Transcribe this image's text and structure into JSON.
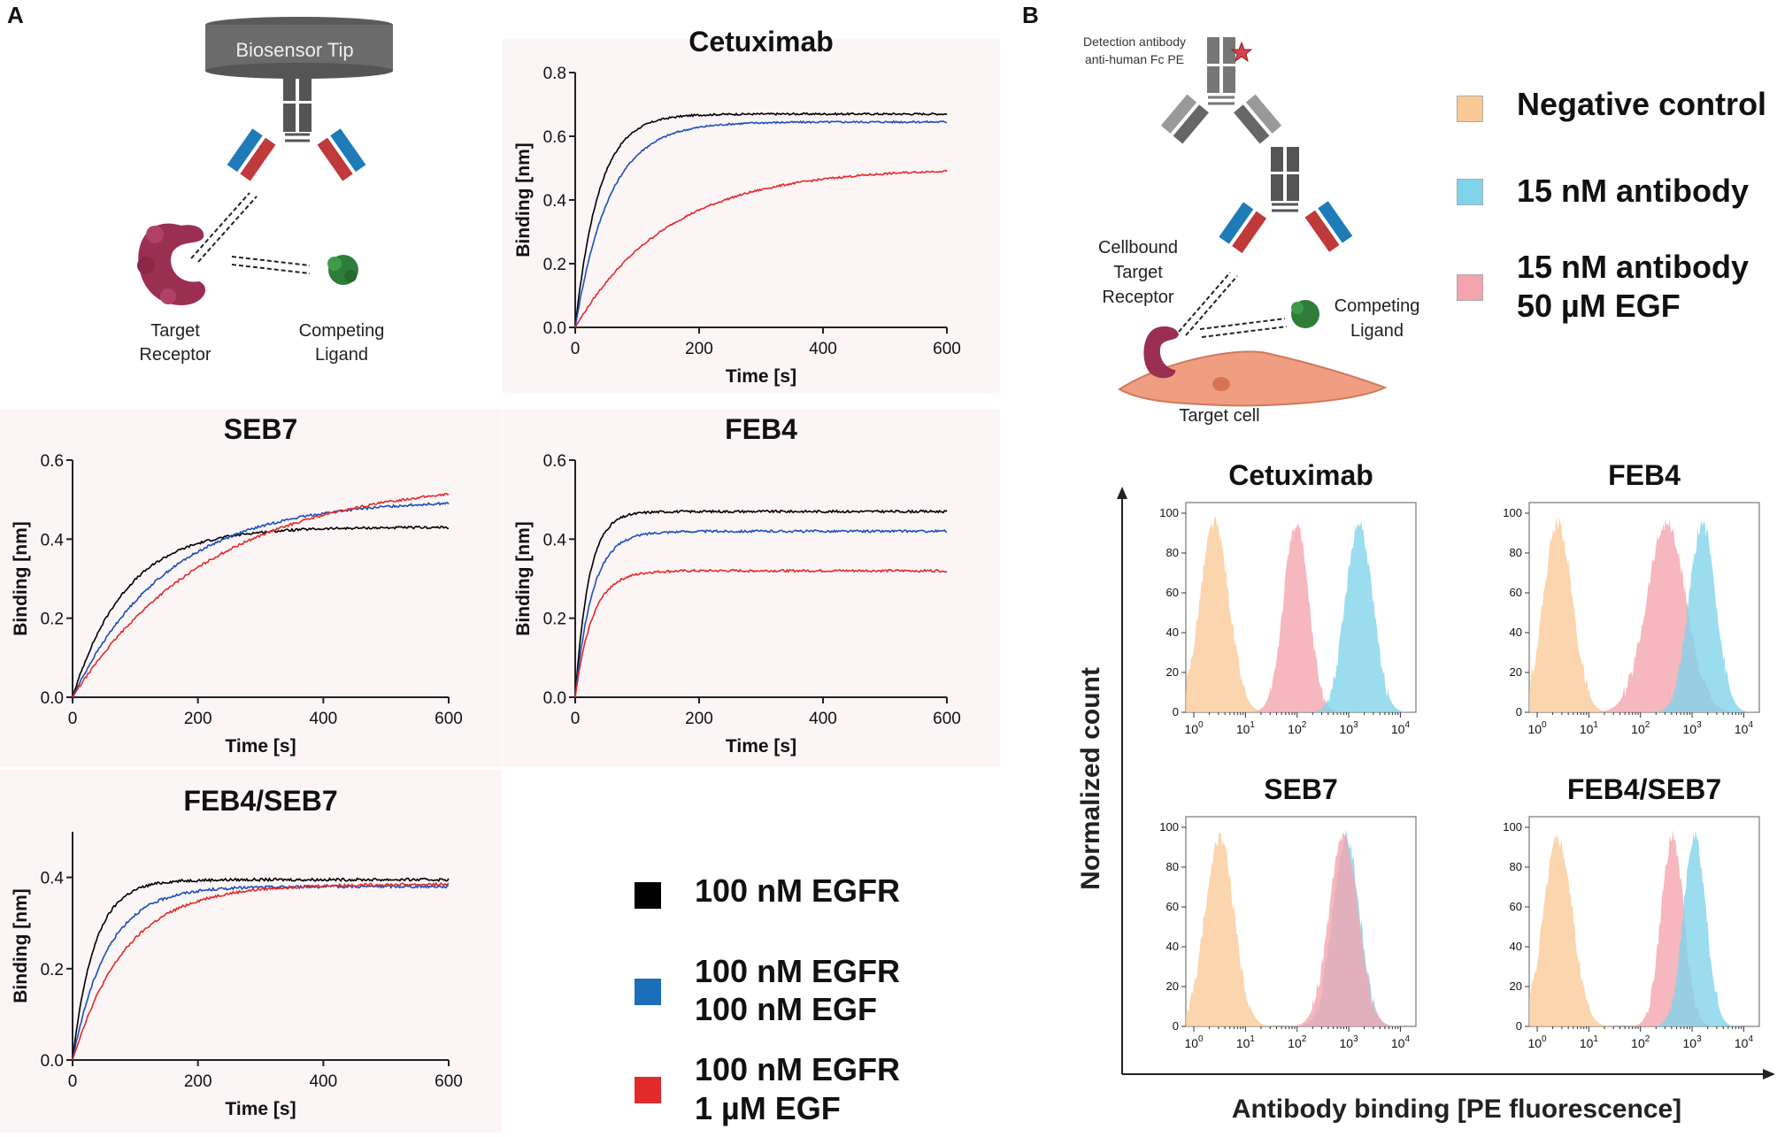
{
  "panels": {
    "a_label": "A",
    "b_label": "B"
  },
  "schematic_a": {
    "tip_label": "Biosensor Tip",
    "target_label_1": "Target",
    "target_label_2": "Receptor",
    "ligand_label_1": "Competing",
    "ligand_label_2": "Ligand"
  },
  "schematic_b": {
    "detection_label_1": "Detection antibody",
    "detection_label_2": "anti-human Fc PE",
    "cell_receptor_1": "Cellbound",
    "cell_receptor_2": "Target",
    "cell_receptor_3": "Receptor",
    "ligand_label_1": "Competing",
    "ligand_label_2": "Ligand",
    "cell_label": "Target cell"
  },
  "legend_a": {
    "items": [
      {
        "line1": "100 nM EGFR",
        "line2": "",
        "color": "#000000"
      },
      {
        "line1": "100 nM EGFR",
        "line2": "100 nM EGF",
        "color": "#1a6fb8"
      },
      {
        "line1": "100 nM EGFR",
        "line2": "1 µM EGF",
        "color": "#e32a2a"
      }
    ]
  },
  "legend_b": {
    "items": [
      {
        "line1": "Negative control",
        "line2": "",
        "color": "#f9c996"
      },
      {
        "line1": "15 nM antibody",
        "line2": "",
        "color": "#7fd3ea"
      },
      {
        "line1": "15 nM antibody",
        "line2": "50 µM EGF",
        "color": "#f5a3ad"
      }
    ]
  },
  "flow_axes": {
    "ylabel": "Normalized count",
    "xlabel": "Antibody binding [PE fluorescence]"
  },
  "chart_data": [
    {
      "id": "bli_cetuximab",
      "type": "line",
      "title": "Cetuximab",
      "xlabel": "Time [s]",
      "ylabel": "Binding [nm]",
      "xlim": [
        0,
        600
      ],
      "ylim": [
        0,
        0.8
      ],
      "xticks": [
        0,
        200,
        400,
        600
      ],
      "yticks": [
        0.0,
        0.2,
        0.4,
        0.6,
        0.8
      ],
      "series": [
        {
          "name": "100 nM EGFR",
          "color": "#000000",
          "plateau": 0.67,
          "tau": 38
        },
        {
          "name": "100 nM EGFR 100 nM EGF",
          "color": "#1a50b8",
          "plateau": 0.645,
          "tau": 55
        },
        {
          "name": "100 nM EGFR 1 µM EGF",
          "color": "#e32a2a",
          "plateau": 0.5,
          "tau": 150
        }
      ]
    },
    {
      "id": "bli_seb7",
      "type": "line",
      "title": "SEB7",
      "xlabel": "Time [s]",
      "ylabel": "Binding [nm]",
      "xlim": [
        0,
        600
      ],
      "ylim": [
        0,
        0.6
      ],
      "xticks": [
        0,
        200,
        400,
        600
      ],
      "yticks": [
        0.0,
        0.2,
        0.4,
        0.6
      ],
      "series": [
        {
          "name": "100 nM EGFR",
          "color": "#000000",
          "plateau": 0.43,
          "tau": 85
        },
        {
          "name": "100 nM EGFR 100 nM EGF",
          "color": "#1a50b8",
          "plateau": 0.5,
          "tau": 150
        },
        {
          "name": "100 nM EGFR 1 µM EGF",
          "color": "#e32a2a",
          "plateau": 0.55,
          "tau": 220
        }
      ]
    },
    {
      "id": "bli_feb4",
      "type": "line",
      "title": "FEB4",
      "xlabel": "Time [s]",
      "ylabel": "Binding [nm]",
      "xlim": [
        0,
        600
      ],
      "ylim": [
        0,
        0.6
      ],
      "xticks": [
        0,
        200,
        400,
        600
      ],
      "yticks": [
        0.0,
        0.2,
        0.4,
        0.6
      ],
      "series": [
        {
          "name": "100 nM EGFR",
          "color": "#000000",
          "plateau": 0.47,
          "tau": 22
        },
        {
          "name": "100 nM EGFR 100 nM EGF",
          "color": "#1a50b8",
          "plateau": 0.42,
          "tau": 28
        },
        {
          "name": "100 nM EGFR 1 µM EGF",
          "color": "#e32a2a",
          "plateau": 0.32,
          "tau": 28
        }
      ]
    },
    {
      "id": "bli_feb4seb7",
      "type": "line",
      "title": "FEB4/SEB7",
      "xlabel": "Time [s]",
      "ylabel": "Binding [nm]",
      "xlim": [
        0,
        600
      ],
      "ylim": [
        0,
        0.5
      ],
      "xticks": [
        0,
        200,
        400,
        600
      ],
      "yticks": [
        0.0,
        0.2,
        0.4
      ],
      "series": [
        {
          "name": "100 nM EGFR",
          "color": "#000000",
          "plateau": 0.395,
          "tau": 35
        },
        {
          "name": "100 nM EGFR 100 nM EGF",
          "color": "#1a50b8",
          "plateau": 0.38,
          "tau": 55
        },
        {
          "name": "100 nM EGFR 1 µM EGF",
          "color": "#e32a2a",
          "plateau": 0.385,
          "tau": 85
        }
      ]
    },
    {
      "id": "flow_cetuximab",
      "type": "area",
      "title": "Cetuximab",
      "xscale": "log",
      "xlim": [
        0.7,
        20000
      ],
      "ylim": [
        0,
        100
      ],
      "yticks": [
        0,
        20,
        40,
        60,
        80,
        100
      ],
      "xticks": [
        "10^0",
        "10^1",
        "10^2",
        "10^3",
        "10^4"
      ],
      "series": [
        {
          "name": "Negative control",
          "color": "#f9c996",
          "peak_log": 0.4,
          "width": 0.28
        },
        {
          "name": "15 nM antibody 50 µM EGF",
          "color": "#f5a3ad",
          "peak_log": 1.98,
          "width": 0.24
        },
        {
          "name": "15 nM antibody",
          "color": "#7fd3ea",
          "peak_log": 3.2,
          "width": 0.26
        }
      ]
    },
    {
      "id": "flow_feb4",
      "type": "area",
      "title": "FEB4",
      "xscale": "log",
      "xlim": [
        0.7,
        20000
      ],
      "ylim": [
        0,
        100
      ],
      "yticks": [
        0,
        20,
        40,
        60,
        80,
        100
      ],
      "xticks": [
        "10^0",
        "10^1",
        "10^2",
        "10^3",
        "10^4"
      ],
      "series": [
        {
          "name": "Negative control",
          "color": "#f9c996",
          "peak_log": 0.4,
          "width": 0.28
        },
        {
          "name": "15 nM antibody 50 µM EGF",
          "color": "#f5a3ad",
          "peak_log": 2.5,
          "width": 0.38
        },
        {
          "name": "15 nM antibody",
          "color": "#7fd3ea",
          "peak_log": 3.2,
          "width": 0.26
        }
      ]
    },
    {
      "id": "flow_seb7",
      "type": "area",
      "title": "SEB7",
      "xscale": "log",
      "xlim": [
        0.7,
        20000
      ],
      "ylim": [
        0,
        100
      ],
      "yticks": [
        0,
        20,
        40,
        60,
        80,
        100
      ],
      "xticks": [
        "10^0",
        "10^1",
        "10^2",
        "10^3",
        "10^4"
      ],
      "series": [
        {
          "name": "Negative control",
          "color": "#f9c996",
          "peak_log": 0.5,
          "width": 0.28
        },
        {
          "name": "15 nM antibody",
          "color": "#7fd3ea",
          "peak_log": 2.95,
          "width": 0.26
        },
        {
          "name": "15 nM antibody 50 µM EGF",
          "color": "#f5a3ad",
          "peak_log": 2.9,
          "width": 0.28
        }
      ]
    },
    {
      "id": "flow_feb4seb7",
      "type": "area",
      "title": "FEB4/SEB7",
      "xscale": "log",
      "xlim": [
        0.7,
        20000
      ],
      "ylim": [
        0,
        100
      ],
      "yticks": [
        0,
        20,
        40,
        60,
        80,
        100
      ],
      "xticks": [
        "10^0",
        "10^1",
        "10^2",
        "10^3",
        "10^4"
      ],
      "series": [
        {
          "name": "Negative control",
          "color": "#f9c996",
          "peak_log": 0.4,
          "width": 0.28
        },
        {
          "name": "15 nM antibody 50 µM EGF",
          "color": "#f5a3ad",
          "peak_log": 2.62,
          "width": 0.22
        },
        {
          "name": "15 nM antibody",
          "color": "#7fd3ea",
          "peak_log": 3.05,
          "width": 0.22
        }
      ]
    }
  ]
}
